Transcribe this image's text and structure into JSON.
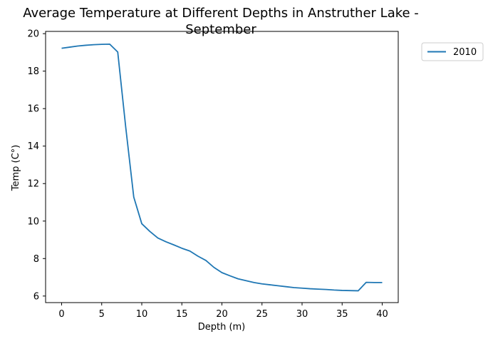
{
  "chart_data": {
    "type": "line",
    "title": "Average Temperature at Different Depths in Anstruther Lake -\nSeptember",
    "xlabel": "Depth (m)",
    "ylabel": "Temp (C°)",
    "xlim": [
      -2,
      42
    ],
    "ylim": [
      5.65,
      20.12
    ],
    "x_ticks": [
      0,
      5,
      10,
      15,
      20,
      25,
      30,
      35,
      40
    ],
    "y_ticks": [
      6,
      8,
      10,
      12,
      14,
      16,
      18,
      20
    ],
    "grid": false,
    "legend_position": "outside-top-right",
    "series": [
      {
        "name": "2010",
        "color": "#1f77b4",
        "x": [
          0,
          1,
          2,
          3,
          4,
          5,
          6,
          7,
          8,
          9,
          10,
          11,
          12,
          13,
          14,
          15,
          16,
          17,
          18,
          19,
          20,
          21,
          22,
          23,
          24,
          25,
          26,
          27,
          28,
          29,
          30,
          31,
          32,
          33,
          34,
          35,
          36,
          37,
          38,
          39,
          40
        ],
        "y": [
          19.22,
          19.28,
          19.34,
          19.38,
          19.41,
          19.43,
          19.44,
          19.02,
          15.0,
          11.28,
          9.86,
          9.45,
          9.1,
          8.9,
          8.73,
          8.55,
          8.4,
          8.13,
          7.9,
          7.53,
          7.25,
          7.08,
          6.92,
          6.82,
          6.72,
          6.65,
          6.6,
          6.55,
          6.5,
          6.45,
          6.42,
          6.39,
          6.37,
          6.35,
          6.32,
          6.3,
          6.29,
          6.28,
          6.73,
          6.72,
          6.72
        ]
      }
    ]
  }
}
